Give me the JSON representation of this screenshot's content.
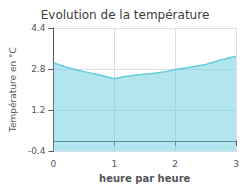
{
  "chart_data": {
    "type": "area",
    "title": "Evolution de la température",
    "x_label": "heure par heure",
    "y_label": "Température en °C",
    "x": [
      0,
      0.2,
      0.4,
      0.6,
      0.8,
      1.0,
      1.2,
      1.4,
      1.6,
      1.8,
      2.0,
      2.2,
      2.5,
      2.75,
      3.0
    ],
    "values": [
      3.05,
      2.88,
      2.75,
      2.65,
      2.55,
      2.42,
      2.52,
      2.58,
      2.62,
      2.68,
      2.78,
      2.85,
      2.98,
      3.15,
      3.3
    ],
    "color": "#66ccdd",
    "xlim": [
      0,
      3
    ],
    "xticks": [
      0,
      1,
      2,
      3
    ],
    "ylim": [
      -0.4,
      4.4
    ],
    "yticks": [
      -0.4,
      1.2,
      2.8,
      4.4
    ],
    "grid": true
  }
}
